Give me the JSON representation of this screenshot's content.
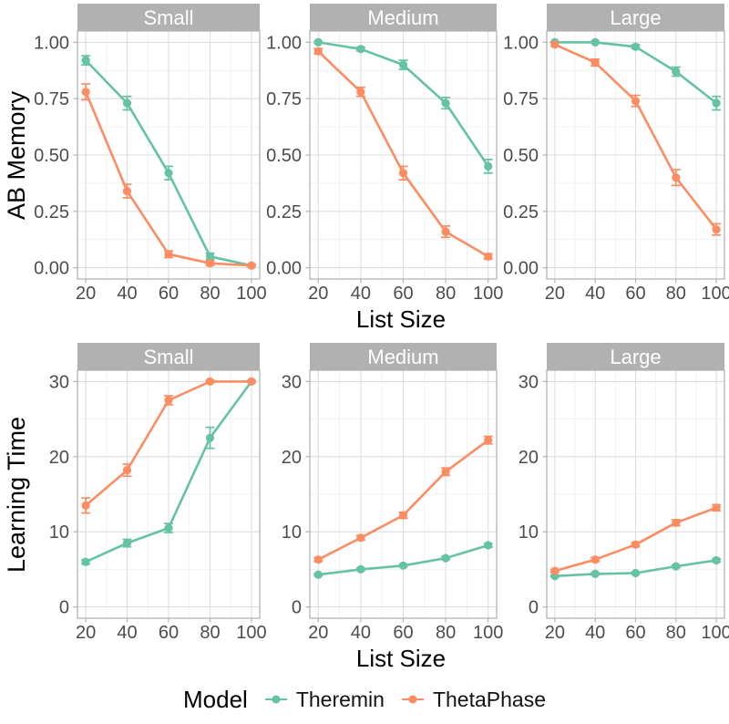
{
  "legend": {
    "title": "Model",
    "items": [
      {
        "label": "Theremin",
        "color": "#66C2A5"
      },
      {
        "label": "ThetaPhase",
        "color": "#FC8D62"
      }
    ]
  },
  "styles": {
    "strip_bg": "#B1B1B1",
    "strip_text": "#FFFFFF",
    "panel_bg": "#FFFFFF",
    "panel_border": "#B3B3B3",
    "grid_major": "#DEDEDE",
    "grid_minor": "#EFEFEF",
    "tick_mark": "#B3B3B3",
    "tick_label_color": "#4D4D4D",
    "axis_title_color": "#000000"
  },
  "chart_data": [
    {
      "type": "line",
      "row_label": "AB Memory",
      "xlabel": "List Size",
      "x": [
        20,
        40,
        60,
        80,
        100
      ],
      "xlim": [
        20,
        100
      ],
      "xminor": [
        30,
        50,
        70,
        90
      ],
      "ylim": [
        0,
        1
      ],
      "yticks": [
        0,
        0.25,
        0.5,
        0.75,
        1.0
      ],
      "ytick_labels": [
        "0.00",
        "0.25",
        "0.50",
        "0.75",
        "1.00"
      ],
      "yminor": [
        0.125,
        0.375,
        0.625,
        0.875
      ],
      "grid": true,
      "legend_position": "bottom",
      "facets": [
        {
          "label": "Small",
          "series": [
            {
              "name": "Theremin",
              "values": [
                0.92,
                0.73,
                0.42,
                0.05,
                0.01
              ],
              "se": [
                0.02,
                0.03,
                0.03,
                0.015,
                0.005
              ]
            },
            {
              "name": "ThetaPhase",
              "values": [
                0.78,
                0.34,
                0.06,
                0.02,
                0.01
              ],
              "se": [
                0.035,
                0.03,
                0.015,
                0.01,
                0.005
              ]
            }
          ]
        },
        {
          "label": "Medium",
          "series": [
            {
              "name": "Theremin",
              "values": [
                1.0,
                0.97,
                0.9,
                0.73,
                0.45
              ],
              "se": [
                0.003,
                0.008,
                0.02,
                0.025,
                0.03
              ]
            },
            {
              "name": "ThetaPhase",
              "values": [
                0.96,
                0.78,
                0.42,
                0.16,
                0.05
              ],
              "se": [
                0.012,
                0.02,
                0.03,
                0.025,
                0.012
              ]
            }
          ]
        },
        {
          "label": "Large",
          "series": [
            {
              "name": "Theremin",
              "values": [
                1.0,
                1.0,
                0.98,
                0.87,
                0.73
              ],
              "se": [
                0.002,
                0.003,
                0.008,
                0.02,
                0.03
              ]
            },
            {
              "name": "ThetaPhase",
              "values": [
                0.99,
                0.91,
                0.74,
                0.4,
                0.17
              ],
              "se": [
                0.008,
                0.015,
                0.025,
                0.035,
                0.025
              ]
            }
          ]
        }
      ]
    },
    {
      "type": "line",
      "row_label": "Learning Time",
      "xlabel": "List Size",
      "x": [
        20,
        40,
        60,
        80,
        100
      ],
      "xlim": [
        20,
        100
      ],
      "xminor": [
        30,
        50,
        70,
        90
      ],
      "ylim": [
        0,
        30
      ],
      "yticks": [
        0,
        10,
        20,
        30
      ],
      "ytick_labels": [
        "0",
        "10",
        "20",
        "30"
      ],
      "yminor": [
        5,
        15,
        25
      ],
      "grid": true,
      "legend_position": "bottom",
      "facets": [
        {
          "label": "Small",
          "series": [
            {
              "name": "Theremin",
              "values": [
                6.0,
                8.5,
                10.5,
                22.5,
                30.0
              ],
              "se": [
                0.3,
                0.5,
                0.6,
                1.4,
                0.1
              ]
            },
            {
              "name": "ThetaPhase",
              "values": [
                13.5,
                18.2,
                27.5,
                30.0,
                30.0
              ],
              "se": [
                1.0,
                0.8,
                0.6,
                0.15,
                0.05
              ]
            }
          ]
        },
        {
          "label": "Medium",
          "series": [
            {
              "name": "Theremin",
              "values": [
                4.3,
                5.0,
                5.5,
                6.5,
                8.2
              ],
              "se": [
                0.15,
                0.15,
                0.15,
                0.2,
                0.25
              ]
            },
            {
              "name": "ThetaPhase",
              "values": [
                6.3,
                9.2,
                12.2,
                18.0,
                22.2
              ],
              "se": [
                0.25,
                0.3,
                0.4,
                0.5,
                0.5
              ]
            }
          ]
        },
        {
          "label": "Large",
          "series": [
            {
              "name": "Theremin",
              "values": [
                4.1,
                4.4,
                4.5,
                5.4,
                6.2
              ],
              "se": [
                0.12,
                0.12,
                0.12,
                0.15,
                0.2
              ]
            },
            {
              "name": "ThetaPhase",
              "values": [
                4.8,
                6.3,
                8.3,
                11.2,
                13.2
              ],
              "se": [
                0.2,
                0.25,
                0.3,
                0.4,
                0.4
              ]
            }
          ]
        }
      ]
    }
  ]
}
